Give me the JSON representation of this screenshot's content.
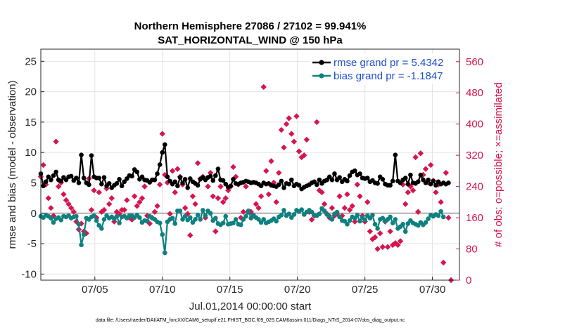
{
  "chart_data": {
    "type": "line",
    "title_line1": "Northern Hemisphere 27086 / 27102 = 99.941%",
    "title_line2": "SAT_HORIZONTAL_WIND @ 150 hPa",
    "xlabel": "Jul.01,2014 00:00:00 start",
    "ylabel": "rmse and bias (model - observation)",
    "ylabel_right": "# of obs: o=possible; ×=assimilated",
    "x_range": [
      1.0,
      32.0
    ],
    "ylim": [
      -11,
      27
    ],
    "ylim_right": [
      0,
      592
    ],
    "x_ticks": [
      5,
      10,
      15,
      20,
      25,
      30
    ],
    "x_tick_labels": [
      "07/05",
      "07/10",
      "07/15",
      "07/20",
      "07/25",
      "07/30"
    ],
    "y_ticks": [
      -10,
      -5,
      0,
      5,
      10,
      15,
      20,
      25
    ],
    "y_tick_labels": [
      "-10",
      "-5",
      "0",
      "5",
      "10",
      "15",
      "20",
      "25"
    ],
    "y_right_ticks": [
      0,
      80,
      160,
      240,
      320,
      400,
      480,
      560
    ],
    "y_right_tick_labels": [
      "0",
      "80",
      "160",
      "240",
      "320",
      "400",
      "480",
      "560"
    ],
    "grid": true,
    "legend_position": "top-right",
    "colors": {
      "rmse": "#000000",
      "bias": "#0f8080",
      "obs": "#d6154f",
      "zero_line": "#b0b0b0",
      "legend_text": "#1f4fd1"
    },
    "series": [
      {
        "name": "rmse grand pr = 5.4342",
        "key": "rmse",
        "values": [
          6.5,
          4.5,
          5.2,
          6.0,
          5.5,
          6.2,
          6.8,
          5.5,
          5.3,
          5.9,
          5.5,
          6.0,
          6.1,
          5.4,
          5.8,
          5.0,
          9.6,
          5.8,
          5.0,
          4.7,
          9.5,
          6.0,
          5.8,
          5.8,
          4.8,
          5.9,
          4.5,
          4.9,
          4.2,
          4.6,
          4.9,
          5.6,
          4.5,
          5.2,
          5.7,
          6.2,
          6.1,
          7.2,
          6.8,
          5.6,
          6.0,
          5.5,
          5.4,
          5.1,
          5.5,
          5.5,
          6.5,
          8.0,
          10.0,
          11.3,
          6.0,
          5.3,
          4.8,
          5.2,
          4.5,
          5.9,
          5.0,
          5.6,
          4.2,
          5.7,
          5.2,
          4.9,
          4.6,
          5.6,
          5.9,
          5.5,
          5.9,
          6.1,
          5.4,
          6.2,
          7.3,
          5.5,
          5.4,
          4.8,
          4.3,
          4.5,
          5.6,
          4.9,
          4.8,
          5.0,
          5.1,
          5.3,
          5.2,
          5.0,
          5.1,
          5.0,
          4.8,
          4.5,
          5.0,
          4.8,
          4.9,
          4.6,
          4.5,
          4.4,
          4.7,
          5.3,
          4.2,
          4.9,
          4.8,
          5.5,
          4.5,
          4.8,
          4.6,
          4.0,
          4.3,
          4.5,
          4.7,
          5.0,
          5.2,
          4.7,
          5.5,
          4.9,
          5.3,
          5.5,
          6.0,
          5.5,
          6.5,
          5.5,
          5.9,
          5.2,
          5.6,
          5.3,
          6.2,
          6.8,
          7.0,
          6.3,
          6.5,
          5.8,
          5.7,
          5.8,
          5.2,
          5.4,
          5.0,
          4.9,
          6.0,
          5.6,
          4.8,
          4.6,
          4.6,
          5.3,
          9.6,
          5.3,
          5.0,
          5.5,
          5.8,
          4.8,
          6.3,
          5.0,
          4.9,
          5.2,
          6.3,
          5.5,
          5.0,
          5.5,
          4.8,
          5.3,
          4.6,
          5.2,
          4.8,
          5.0,
          4.8,
          5.0
        ]
      },
      {
        "name": "bias grand pr = -1.1847",
        "key": "bias",
        "values": [
          -0.5,
          -0.7,
          -0.3,
          -0.5,
          -0.8,
          -1.5,
          -0.9,
          -0.7,
          -1.1,
          -0.5,
          -0.6,
          -0.4,
          -0.8,
          -0.6,
          -0.5,
          -1.8,
          -5.2,
          -3.5,
          -0.8,
          -1.0,
          -0.6,
          -0.4,
          -1.2,
          -2.0,
          -2.5,
          -1.0,
          -0.4,
          -0.8,
          -0.6,
          -0.9,
          -0.5,
          -1.6,
          -0.6,
          -0.5,
          -0.8,
          -0.4,
          -0.4,
          -0.7,
          -0.3,
          -0.7,
          -1.5,
          -1.2,
          -1.3,
          -0.5,
          -0.8,
          -1.0,
          -1.4,
          -1.6,
          -3.5,
          -6.5,
          -1.4,
          -1.0,
          -0.8,
          -1.7,
          0.4,
          0.4,
          -1.0,
          -0.5,
          -1.1,
          -0.7,
          -1.5,
          -1.0,
          -0.3,
          -1.0,
          0.5,
          -0.4,
          0.4,
          0.0,
          -1.2,
          -0.8,
          -1.7,
          -1.9,
          -1.6,
          -0.5,
          -1.8,
          -1.7,
          -1.6,
          -1.0,
          -1.8,
          -1.9,
          -1.0,
          -0.5,
          0.4,
          -0.8,
          -0.3,
          -0.7,
          -1.0,
          -1.5,
          -1.0,
          -1.6,
          -1.4,
          -1.2,
          -0.9,
          -1.3,
          -0.6,
          -0.3,
          0.5,
          -0.4,
          -0.1,
          -0.7,
          -0.2,
          0.5,
          0.3,
          0.6,
          -0.2,
          0.2,
          0.5,
          0.2,
          -0.3,
          -0.4,
          -0.1,
          0.8,
          0.4,
          -0.2,
          -0.5,
          -1.0,
          -0.1,
          0.2,
          -0.6,
          -1.2,
          -1.3,
          -1.8,
          -1.2,
          -0.6,
          -0.8,
          -0.3,
          -1.3,
          -0.7,
          -1.1,
          -0.4,
          -0.8,
          -0.3,
          -1.8,
          -2.5,
          -1.0,
          -0.8,
          -1.3,
          -1.0,
          -0.6,
          -1.6,
          -1.0,
          -2.5,
          -2.2,
          -1.8,
          -3.0,
          -1.7,
          -1.2,
          -1.6,
          -1.8,
          -2.0,
          -1.5,
          -1.9,
          -1.5,
          -0.9,
          -0.3,
          -0.5,
          -0.2,
          -0.4,
          0.3,
          -0.6
        ]
      },
      {
        "name": "# of obs assimilated",
        "key": "obs",
        "values": [
          265,
          295,
          245,
          210,
          185,
          165,
          355,
          240,
          250,
          220,
          205,
          195,
          185,
          175,
          150,
          130,
          145,
          125,
          120,
          260,
          180,
          230,
          160,
          225,
          175,
          180,
          235,
          195,
          210,
          150,
          175,
          170,
          180,
          180,
          205,
          160,
          155,
          215,
          190,
          200,
          210,
          240,
          165,
          145,
          160,
          175,
          190,
          245,
          375,
          270,
          250,
          170,
          280,
          225,
          285,
          265,
          245,
          185,
          170,
          115,
          215,
          195,
          300,
          260,
          265,
          160,
          240,
          275,
          215,
          125,
          210,
          240,
          200,
          210,
          230,
          240,
          290,
          265,
          245,
          160,
          175,
          240,
          175,
          175,
          165,
          195,
          185,
          215,
          495,
          280,
          220,
          305,
          250,
          200,
          275,
          385,
          340,
          400,
          415,
          375,
          355,
          420,
          330,
          315,
          320,
          360,
          175,
          155,
          165,
          405,
          230,
          225,
          195,
          170,
          160,
          185,
          165,
          170,
          215,
          165,
          185,
          220,
          180,
          190,
          150,
          245,
          215,
          165,
          150,
          200,
          125,
          105,
          110,
          80,
          120,
          85,
          150,
          85,
          125,
          90,
          95,
          90,
          100,
          245,
          195,
          225,
          240,
          230,
          315,
          175,
          325,
          270,
          285,
          250,
          295,
          255,
          225,
          245,
          200,
          45,
          275,
          160,
          0
        ]
      }
    ],
    "footnote": "data file: /Users/raeder/DAI/ATM_forcXX/CAM6_setup/f.e21.FHIST_BGC.f09_025.CAM6assim.011/Diags_NTrS_2014-07/obs_diag_output.nc"
  }
}
